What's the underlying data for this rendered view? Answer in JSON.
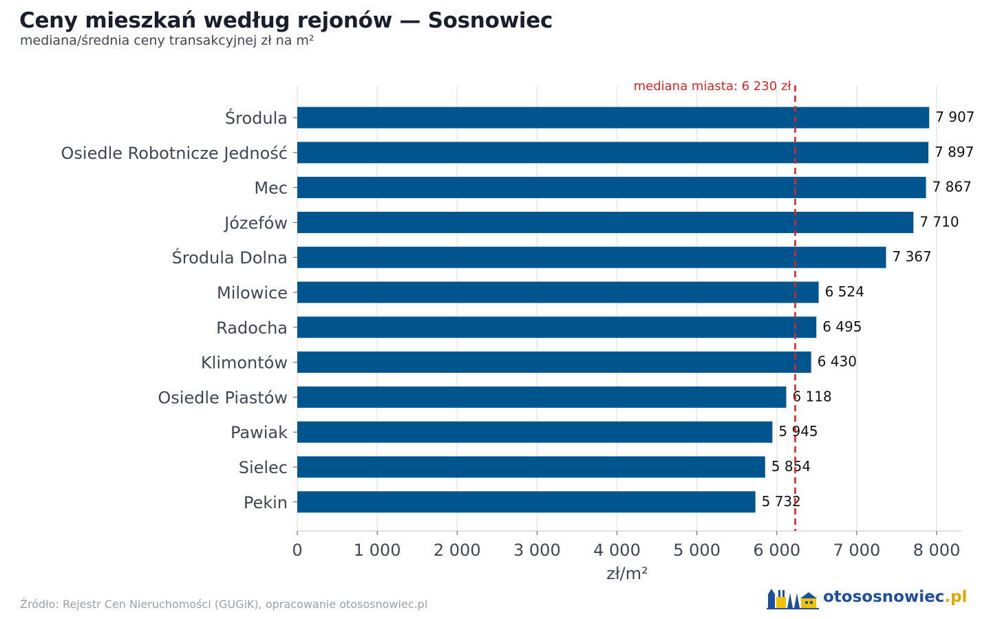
{
  "header": {
    "title": "Ceny mieszkań według rejonów — Sosnowiec",
    "subtitle": "mediana/średnia ceny transakcyjnej zł na m²"
  },
  "footer": {
    "source": "Źródło: Rejestr Cen Nieruchomości (GUGiK), opracowanie otososnowiec.pl"
  },
  "logo": {
    "name": "otososnowiec",
    "tld": ".pl",
    "icon": "town-skyline-icon"
  },
  "colors": {
    "bar": "#00558f",
    "reference_line": "#d62728",
    "grid": "#e3e3e3",
    "axis_text": "#3f4656"
  },
  "chart_data": {
    "type": "bar",
    "orientation": "horizontal",
    "categories": [
      "Środula",
      "Osiedle Robotnicze Jedność",
      "Mec",
      "Józefów",
      "Środula Dolna",
      "Milowice",
      "Radocha",
      "Klimontów",
      "Osiedle Piastów",
      "Pawiak",
      "Sielec",
      "Pekin"
    ],
    "values": [
      7907,
      7897,
      7867,
      7710,
      7367,
      6524,
      6495,
      6430,
      6118,
      5945,
      5854,
      5732
    ],
    "value_labels": [
      "7 907",
      "7 897",
      "7 867",
      "7 710",
      "7 367",
      "6 524",
      "6 495",
      "6 430",
      "6 118",
      "5 945",
      "5 854",
      "5 732"
    ],
    "title": "Ceny mieszkań według rejonów — Sosnowiec",
    "subtitle": "mediana/średnia ceny transakcyjnej zł na m²",
    "xlabel": "zł/m²",
    "ylabel": "",
    "xlim": [
      0,
      8300
    ],
    "xticks": [
      0,
      1000,
      2000,
      3000,
      4000,
      5000,
      6000,
      7000,
      8000
    ],
    "xtick_labels": [
      "0",
      "1 000",
      "2 000",
      "3 000",
      "4 000",
      "5 000",
      "6 000",
      "7 000",
      "8 000"
    ],
    "grid": "vertical",
    "legend": "none",
    "reference_line": {
      "value": 6230,
      "label": "mediana miasta: 6 230 zł",
      "style": "dashed"
    }
  }
}
